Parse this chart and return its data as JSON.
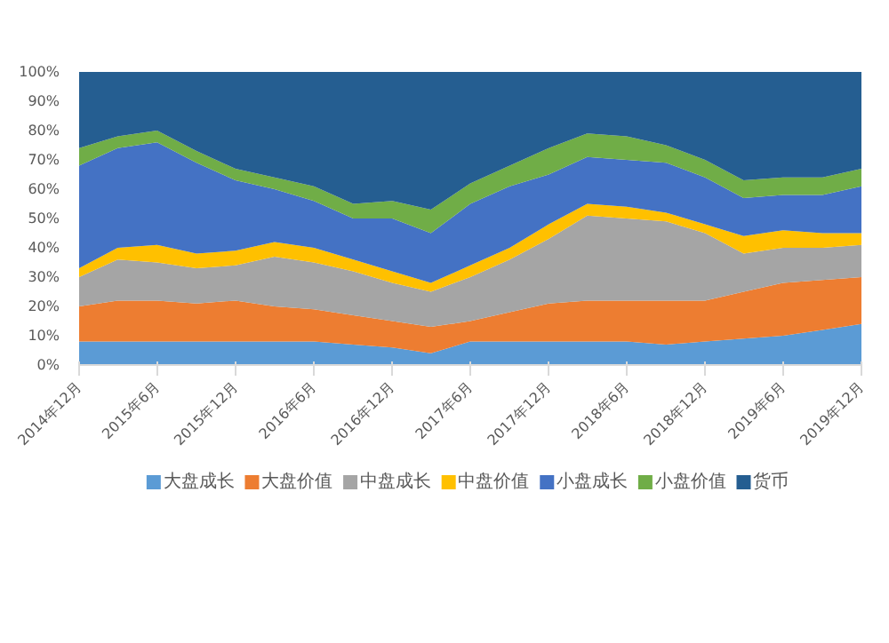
{
  "chart_data": {
    "type": "area",
    "stacked": true,
    "x": [
      "2014-12",
      "2015-03",
      "2015-06",
      "2015-09",
      "2015-12",
      "2016-03",
      "2016-06",
      "2016-09",
      "2016-12",
      "2017-03",
      "2017-06",
      "2017-09",
      "2017-12",
      "2018-03",
      "2018-06",
      "2018-09",
      "2018-12",
      "2019-03",
      "2019-06",
      "2019-09",
      "2019-12"
    ],
    "series": [
      {
        "name": "大盘成长",
        "color": "#5b9bd5",
        "values": [
          8,
          8,
          8,
          8,
          8,
          8,
          8,
          7,
          6,
          4,
          8,
          8,
          8,
          8,
          8,
          7,
          8,
          9,
          10,
          12,
          14
        ]
      },
      {
        "name": "大盘价值",
        "color": "#ed7d31",
        "values": [
          12,
          14,
          14,
          13,
          14,
          12,
          11,
          10,
          9,
          9,
          7,
          10,
          13,
          14,
          14,
          15,
          14,
          16,
          18,
          17,
          16
        ]
      },
      {
        "name": "中盘成长",
        "color": "#a5a5a5",
        "values": [
          10,
          14,
          13,
          12,
          12,
          17,
          16,
          15,
          13,
          12,
          15,
          18,
          22,
          29,
          28,
          27,
          23,
          13,
          12,
          11,
          11
        ]
      },
      {
        "name": "中盘价值",
        "color": "#ffc000",
        "values": [
          3,
          4,
          6,
          5,
          5,
          5,
          5,
          4,
          4,
          3,
          4,
          4,
          5,
          4,
          4,
          3,
          3,
          6,
          6,
          5,
          4
        ]
      },
      {
        "name": "小盘成长",
        "color": "#4472c4",
        "values": [
          35,
          34,
          35,
          31,
          24,
          18,
          16,
          14,
          18,
          17,
          21,
          21,
          17,
          16,
          16,
          17,
          16,
          13,
          12,
          13,
          16
        ]
      },
      {
        "name": "小盘价值",
        "color": "#70ad47",
        "values": [
          6,
          4,
          4,
          4,
          4,
          4,
          5,
          5,
          6,
          8,
          7,
          7,
          9,
          8,
          8,
          6,
          6,
          6,
          6,
          6,
          6
        ]
      },
      {
        "name": "货币",
        "color": "#255e91",
        "values": [
          26,
          22,
          20,
          27,
          33,
          36,
          39,
          45,
          44,
          47,
          38,
          32,
          26,
          21,
          22,
          25,
          30,
          37,
          36,
          36,
          33
        ]
      }
    ],
    "xlim": [
      "2014-12",
      "2019-12"
    ],
    "xticks": [
      {
        "value": "2014-12",
        "label": "2014年12月"
      },
      {
        "value": "2015-06",
        "label": "2015年6月"
      },
      {
        "value": "2015-12",
        "label": "2015年12月"
      },
      {
        "value": "2016-06",
        "label": "2016年6月"
      },
      {
        "value": "2016-12",
        "label": "2016年12月"
      },
      {
        "value": "2017-06",
        "label": "2017年6月"
      },
      {
        "value": "2017-12",
        "label": "2017年12月"
      },
      {
        "value": "2018-06",
        "label": "2018年6月"
      },
      {
        "value": "2018-12",
        "label": "2018年12月"
      },
      {
        "value": "2019-06",
        "label": "2019年6月"
      },
      {
        "value": "2019-12",
        "label": "2019年12月"
      }
    ],
    "ylim": [
      0,
      100
    ],
    "yticks": [
      {
        "value": 0,
        "label": "0%"
      },
      {
        "value": 10,
        "label": "10%"
      },
      {
        "value": 20,
        "label": "20%"
      },
      {
        "value": 30,
        "label": "30%"
      },
      {
        "value": 40,
        "label": "40%"
      },
      {
        "value": 50,
        "label": "50%"
      },
      {
        "value": 60,
        "label": "60%"
      },
      {
        "value": 70,
        "label": "70%"
      },
      {
        "value": 80,
        "label": "80%"
      },
      {
        "value": 90,
        "label": "90%"
      },
      {
        "value": 100,
        "label": "100%"
      }
    ],
    "legend": "bottom",
    "grid": false
  }
}
